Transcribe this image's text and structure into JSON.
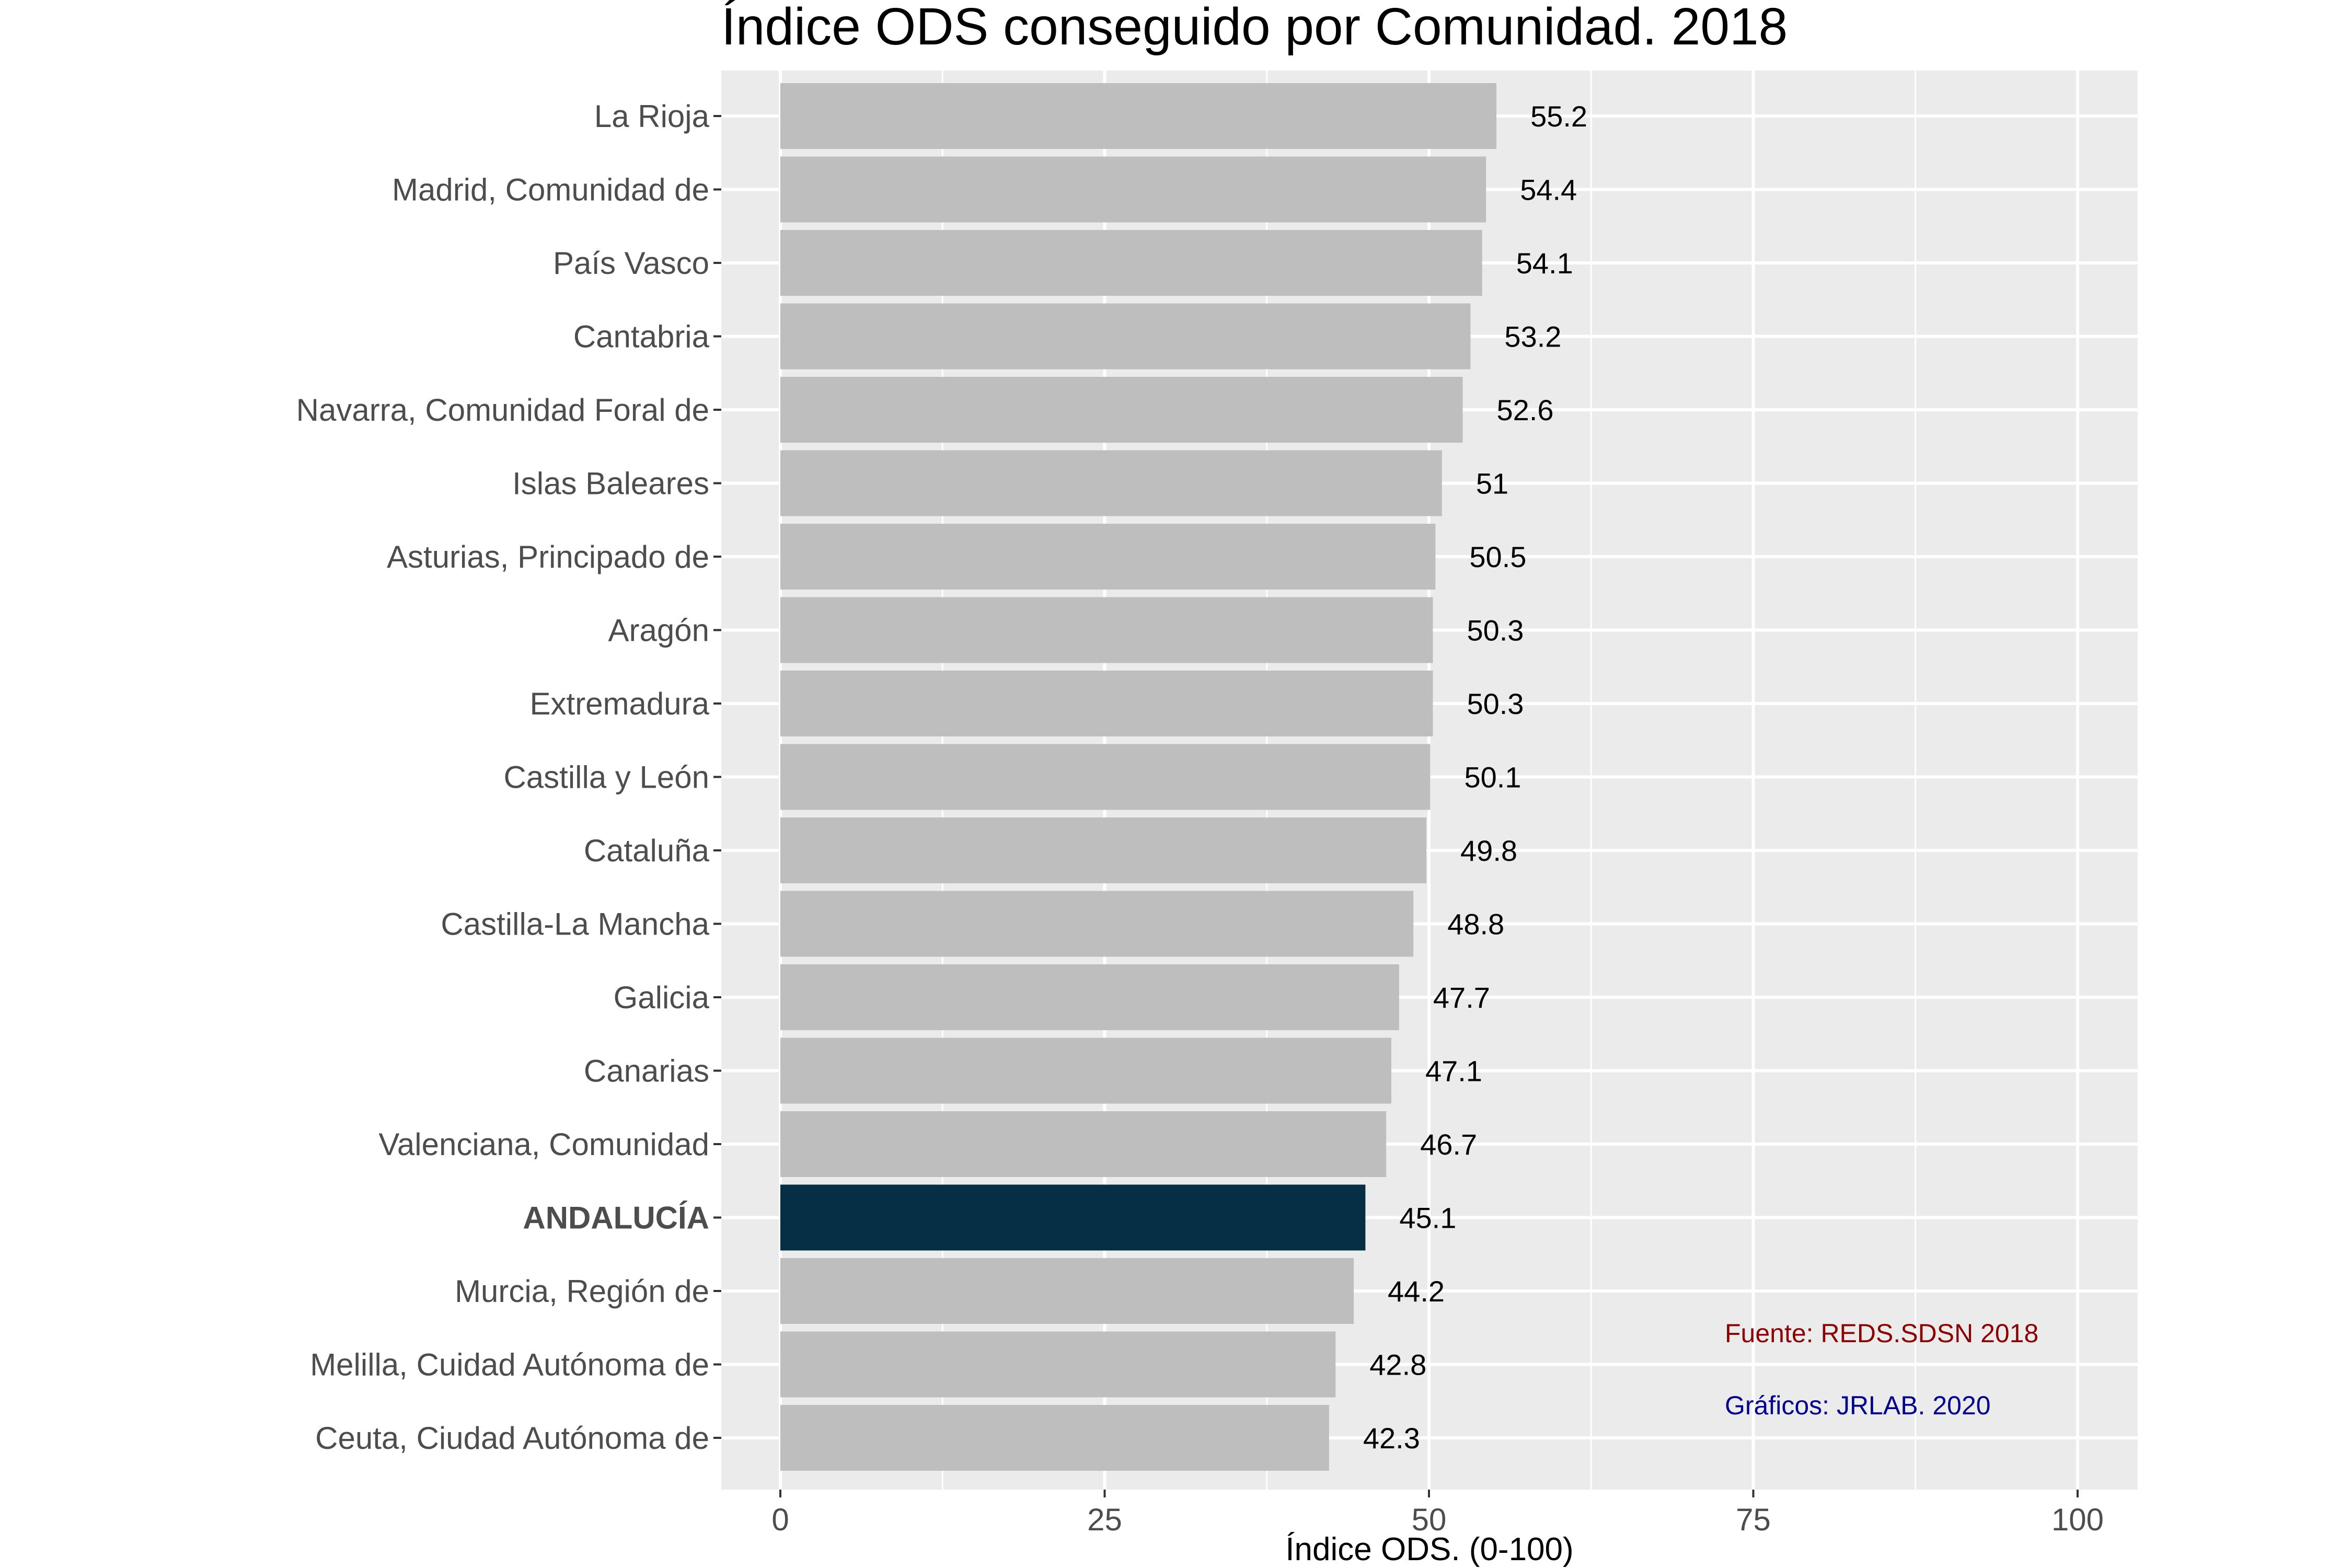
{
  "chart_data": {
    "type": "bar",
    "orientation": "horizontal",
    "title": "Índice ODS conseguido por Comunidad. 2018",
    "xlabel": "Índice ODS. (0-100)",
    "ylabel": "",
    "xlim": [
      0,
      100
    ],
    "x_ticks": [
      0,
      25,
      50,
      75,
      100
    ],
    "x_tick_labels": [
      "0",
      "25",
      "50",
      "75",
      "100"
    ],
    "grid": true,
    "categories": [
      "La Rioja",
      "Madrid, Comunidad de",
      "País Vasco",
      "Cantabria",
      "Navarra, Comunidad Foral de",
      "Islas Baleares",
      "Asturias, Principado de",
      "Aragón",
      "Extremadura",
      "Castilla y León",
      "Cataluña",
      "Castilla-La Mancha",
      "Galicia",
      "Canarias",
      "Valenciana, Comunidad",
      "ANDALUCÍA",
      "Murcia, Región de",
      "Melilla, Cuidad Autónoma de",
      "Ceuta, Ciudad Autónoma de"
    ],
    "values": [
      55.2,
      54.4,
      54.1,
      53.2,
      52.6,
      51,
      50.5,
      50.3,
      50.3,
      50.1,
      49.8,
      48.8,
      47.7,
      47.1,
      46.7,
      45.1,
      44.2,
      42.8,
      42.3
    ],
    "value_labels": [
      "55.2",
      "54.4",
      "54.1",
      "53.2",
      "52.6",
      "51",
      "50.5",
      "50.3",
      "50.3",
      "50.1",
      "49.8",
      "48.8",
      "47.7",
      "47.1",
      "46.7",
      "45.1",
      "44.2",
      "42.8",
      "42.3"
    ],
    "highlight": "ANDALUCÍA",
    "colors": {
      "bar": "#bebebe",
      "highlight_bar": "#062e45",
      "panel": "#ebebeb",
      "grid": "#ffffff",
      "source_text": "#8b0000",
      "credit_text": "#00008b"
    },
    "annotations": {
      "source": "Fuente: REDS.SDSN 2018",
      "credit": "Gráficos: JRLAB. 2020"
    }
  }
}
